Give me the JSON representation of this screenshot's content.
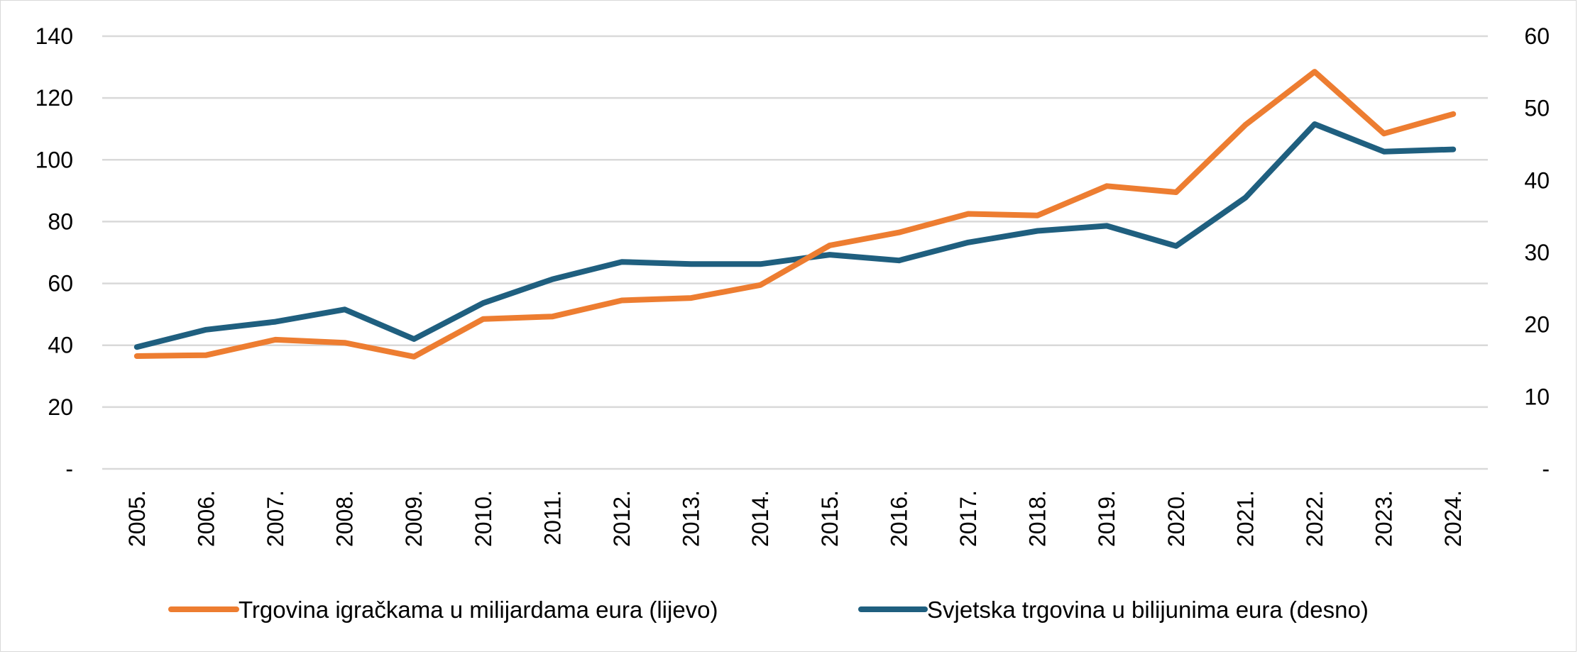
{
  "chart_data": {
    "type": "line",
    "categories": [
      "2005.",
      "2006.",
      "2007.",
      "2008.",
      "2009.",
      "2010.",
      "2011.",
      "2012.",
      "2013.",
      "2014.",
      "2015.",
      "2016.",
      "2017.",
      "2018.",
      "2019.",
      "2020.",
      "2021.",
      "2022.",
      "2023.",
      "2024."
    ],
    "y_left": {
      "ticks": [
        "-",
        "20",
        "40",
        "60",
        "80",
        "100",
        "120",
        "140"
      ],
      "ylim": [
        0,
        140
      ]
    },
    "y_right": {
      "ticks": [
        "-",
        "10",
        "20",
        "30",
        "40",
        "50",
        "60"
      ],
      "ylim": [
        0,
        60
      ]
    },
    "grid": true,
    "legend_position": "bottom",
    "series": [
      {
        "name": "Trgovina igračkama u milijardama eura (lijevo)",
        "axis": "left",
        "color": "#ED7D31",
        "values": [
          36.5,
          36.8,
          41.8,
          40.8,
          36.3,
          48.5,
          49.3,
          54.5,
          55.3,
          59.5,
          72.3,
          76.5,
          82.5,
          82.0,
          91.5,
          89.5,
          111.3,
          128.5,
          108.5,
          114.8
        ]
      },
      {
        "name": "Svjetska trgovina u bilijunima eura (desno)",
        "axis": "right",
        "color": "#1F5F7F",
        "values": [
          16.9,
          19.3,
          20.4,
          22.1,
          18.0,
          23.0,
          26.3,
          28.7,
          28.4,
          28.4,
          29.7,
          28.9,
          31.4,
          33.0,
          33.7,
          30.9,
          37.6,
          47.8,
          44.0,
          44.3
        ]
      }
    ]
  }
}
